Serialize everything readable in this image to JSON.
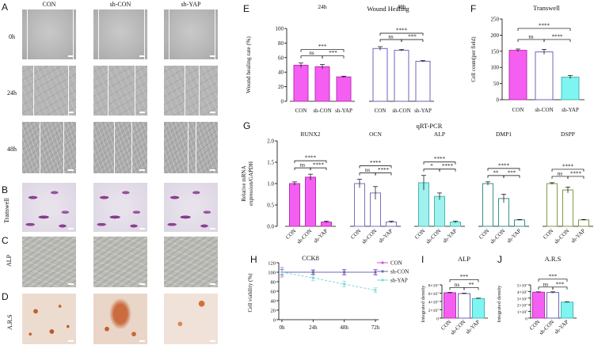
{
  "panels": {
    "A": "A",
    "B": "B",
    "C": "C",
    "D": "D",
    "E": "E",
    "F": "F",
    "G": "G",
    "H": "H",
    "I": "I",
    "J": "J"
  },
  "micro": {
    "columns": [
      "CON",
      "sh-CON",
      "sh-YAP"
    ],
    "rows": [
      "0h",
      "24h",
      "48h",
      "Transwell",
      "ALP",
      "A.R.S"
    ]
  },
  "chart_data": [
    {
      "id": "E",
      "type": "bar",
      "title": "Wound Healing",
      "ylabel": "Wound healing rate (%)",
      "ylim": [
        0,
        100
      ],
      "yticks": [
        0,
        20,
        40,
        60,
        80,
        100
      ],
      "groups": [
        {
          "name": "24h",
          "categories": [
            "CON",
            "sh-CON",
            "sh-YAP"
          ],
          "values": [
            49.5,
            47.5,
            33.5
          ],
          "errors": [
            3,
            3,
            1
          ],
          "sig": [
            {
              "from": 0,
              "to": 1,
              "label": "ns",
              "level": 0
            },
            {
              "from": 1,
              "to": 2,
              "label": "***",
              "level": 0
            },
            {
              "from": 0,
              "to": 2,
              "label": "***",
              "level": 1
            }
          ]
        },
        {
          "name": "48h",
          "categories": [
            "CON",
            "sh-CON",
            "sh-YAP"
          ],
          "values": [
            72.5,
            70,
            55
          ],
          "errors": [
            2.5,
            1,
            1
          ],
          "sig": [
            {
              "from": 0,
              "to": 1,
              "label": "ns",
              "level": 0
            },
            {
              "from": 1,
              "to": 2,
              "label": "***",
              "level": 0
            },
            {
              "from": 0,
              "to": 2,
              "label": "****",
              "level": 1
            }
          ]
        }
      ],
      "colors": [
        "#f45ff2",
        "#ffffff",
        "#ffffff"
      ]
    },
    {
      "id": "F",
      "type": "bar",
      "title": "Transwell",
      "ylabel": "Cell count(per field)",
      "ylim": [
        0,
        250
      ],
      "yticks": [
        0,
        50,
        100,
        150,
        200,
        250
      ],
      "categories": [
        "CON",
        "sh-CON",
        "sh-YAP"
      ],
      "values": [
        153,
        148,
        70
      ],
      "errors": [
        4,
        8,
        5
      ],
      "sig": [
        {
          "from": 0,
          "to": 1,
          "label": "ns",
          "level": 0
        },
        {
          "from": 1,
          "to": 2,
          "label": "****",
          "level": 0
        },
        {
          "from": 0,
          "to": 2,
          "label": "****",
          "level": 1
        }
      ],
      "colors": [
        "#f45ff2",
        "#ffffff",
        "#7ff5f2"
      ]
    },
    {
      "id": "G",
      "type": "bar",
      "title": "qRT-PCR",
      "ylabel_lines": [
        "Relative mRNA",
        "expression/GAPDH"
      ],
      "ylim": [
        0,
        2.0
      ],
      "yticks": [
        0.0,
        0.5,
        1.0,
        1.5,
        2.0
      ],
      "ytick_labels": [
        "0.0",
        "0.5",
        "1.0",
        "1.5",
        "2.0"
      ],
      "groups": [
        {
          "name": "RUNX2",
          "values": [
            1.0,
            1.15,
            0.1
          ],
          "errors": [
            0.04,
            0.07,
            0.02
          ],
          "colors": [
            "#f45ff2",
            "#f45ff2",
            "#f45ff2"
          ],
          "edge": "#b830b5",
          "sig": [
            {
              "from": 0,
              "to": 1,
              "label": "ns",
              "level": 0
            },
            {
              "from": 1,
              "to": 2,
              "label": "****",
              "level": 0
            },
            {
              "from": 0,
              "to": 2,
              "label": "****",
              "level": 1
            }
          ]
        },
        {
          "name": "OCN",
          "values": [
            1.0,
            0.78,
            0.1
          ],
          "errors": [
            0.1,
            0.15,
            0.02
          ],
          "colors": [
            "#ffffff",
            "#ffffff",
            "#ffffff"
          ],
          "edge": "#7b72b8",
          "sig": [
            {
              "from": 0,
              "to": 1,
              "label": "ns",
              "level": 0
            },
            {
              "from": 1,
              "to": 2,
              "label": "****",
              "level": 0
            },
            {
              "from": 0,
              "to": 2,
              "label": "****",
              "level": 1
            }
          ]
        },
        {
          "name": "ALP",
          "values": [
            1.02,
            0.7,
            0.1
          ],
          "errors": [
            0.17,
            0.08,
            0.02
          ],
          "colors": [
            "#9ff2ee",
            "#9ff2ee",
            "#9ff2ee"
          ],
          "edge": "#46b8b2",
          "sig": [
            {
              "from": 0,
              "to": 1,
              "label": "*",
              "level": 0
            },
            {
              "from": 1,
              "to": 2,
              "label": "****",
              "level": 0
            },
            {
              "from": 0,
              "to": 2,
              "label": "****",
              "level": 1
            }
          ]
        },
        {
          "name": "DMP1",
          "values": [
            1.0,
            0.65,
            0.15
          ],
          "errors": [
            0.04,
            0.1,
            0.01
          ],
          "colors": [
            "#ffffff",
            "#ffffff",
            "#ffffff"
          ],
          "edge": "#3b8f8a",
          "sig": [
            {
              "from": 0,
              "to": 1,
              "label": "**",
              "level": 0
            },
            {
              "from": 1,
              "to": 2,
              "label": "***",
              "level": 0
            },
            {
              "from": 0,
              "to": 2,
              "label": "****",
              "level": 1
            }
          ]
        },
        {
          "name": "DSPP",
          "values": [
            1.0,
            0.85,
            0.15
          ],
          "errors": [
            0.02,
            0.07,
            0.01
          ],
          "colors": [
            "#ffffff",
            "#ffffff",
            "#ffffff"
          ],
          "edge": "#7c9a4a",
          "sig": [
            {
              "from": 0,
              "to": 1,
              "label": "ns",
              "level": 0
            },
            {
              "from": 1,
              "to": 2,
              "label": "****",
              "level": 0
            },
            {
              "from": 0,
              "to": 2,
              "label": "****",
              "level": 1
            }
          ]
        }
      ],
      "categories": [
        "CON",
        "sh-CON",
        "sh-YAP"
      ]
    },
    {
      "id": "H",
      "type": "line",
      "title": "CCK8",
      "ylabel": "Cell viability (%)",
      "x": [
        "0h",
        "24h",
        "48h",
        "72h"
      ],
      "ylim": [
        0,
        120
      ],
      "yticks": [
        0,
        20,
        40,
        60,
        80,
        100,
        120
      ],
      "series": [
        {
          "name": "CON",
          "values": [
            100,
            100,
            100,
            100
          ],
          "errors": [
            10,
            4,
            6,
            6
          ],
          "color": "#d64fd4"
        },
        {
          "name": "sh-CON",
          "values": [
            100,
            100,
            100,
            100
          ],
          "errors": [
            6,
            5,
            5,
            5
          ],
          "color": "#6b66b8"
        },
        {
          "name": "sh-YAP",
          "values": [
            100,
            88,
            75,
            62
          ],
          "errors": [
            5,
            6,
            6,
            5
          ],
          "color": "#7fd9d6"
        }
      ],
      "legend": "right"
    },
    {
      "id": "I",
      "type": "bar",
      "title": "ALP",
      "ylabel": "Integrated density",
      "ylim": [
        0,
        80000000.0
      ],
      "yticks": [
        0,
        20000000.0,
        40000000.0,
        60000000.0,
        80000000.0
      ],
      "ytick_labels": [
        "0",
        "2×10⁷",
        "4×10⁷",
        "6×10⁷",
        "8×10⁷"
      ],
      "categories": [
        "CON",
        "sh-CON",
        "sh-YAP"
      ],
      "values": [
        61000000.0,
        59000000.0,
        47000000.0
      ],
      "errors": [
        1000000.0,
        1000000.0,
        1000000.0
      ],
      "sig": [
        {
          "from": 0,
          "to": 1,
          "label": "ns",
          "level": 0
        },
        {
          "from": 1,
          "to": 2,
          "label": "**",
          "level": 0
        },
        {
          "from": 0,
          "to": 2,
          "label": "***",
          "level": 1
        }
      ],
      "colors": [
        "#f45ff2",
        "#ffffff",
        "#7ff5f2"
      ]
    },
    {
      "id": "J",
      "type": "bar",
      "title": "A.R.S",
      "ylabel": "Integrated density",
      "ylim": [
        0,
        50000000.0
      ],
      "yticks": [
        0,
        10000000.0,
        20000000.0,
        30000000.0,
        40000000.0,
        50000000.0
      ],
      "ytick_labels": [
        "0",
        "1×10⁷",
        "2×10⁷",
        "3×10⁷",
        "4×10⁷",
        "5×10⁷"
      ],
      "categories": [
        "CON",
        "sh-CON",
        "sh-YAP"
      ],
      "values": [
        39000000.0,
        38500000.0,
        24000000.0
      ],
      "errors": [
        500000.0,
        1000000.0,
        500000.0
      ],
      "sig": [
        {
          "from": 0,
          "to": 1,
          "label": "ns",
          "level": 0
        },
        {
          "from": 1,
          "to": 2,
          "label": "***",
          "level": 0
        },
        {
          "from": 0,
          "to": 2,
          "label": "***",
          "level": 1
        }
      ],
      "colors": [
        "#f45ff2",
        "#ffffff",
        "#7ff5f2"
      ]
    }
  ]
}
